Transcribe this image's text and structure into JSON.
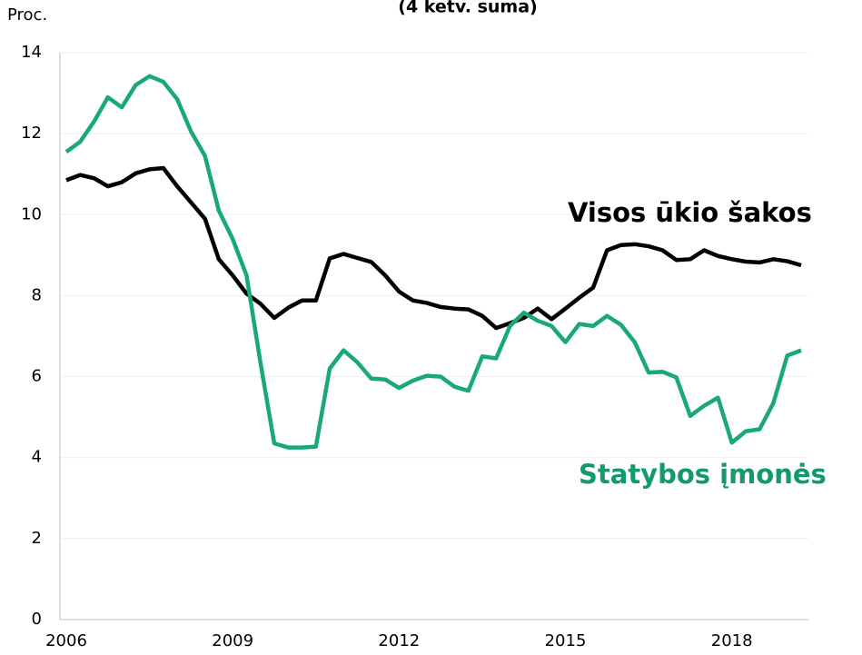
{
  "chart_data": {
    "type": "line",
    "title": "(4 ketv. suma)",
    "y_label": "Proc.",
    "categories": [
      "2006",
      null,
      null,
      null,
      null,
      null,
      null,
      null,
      null,
      null,
      null,
      null,
      "2009",
      null,
      null,
      null,
      null,
      null,
      null,
      null,
      null,
      null,
      null,
      null,
      "2012",
      null,
      null,
      null,
      null,
      null,
      null,
      null,
      null,
      null,
      null,
      null,
      "2015",
      null,
      null,
      null,
      null,
      null,
      null,
      null,
      null,
      null,
      null,
      null,
      "2018",
      null,
      null,
      null,
      null,
      null
    ],
    "series": [
      {
        "name": "Visos ūkio šakos",
        "color": "#000000",
        "values": [
          10.85,
          10.98,
          10.9,
          10.7,
          10.8,
          11.02,
          11.12,
          11.15,
          10.7,
          10.3,
          9.9,
          8.9,
          8.5,
          8.05,
          7.8,
          7.45,
          7.7,
          7.88,
          7.88,
          8.92,
          9.03,
          8.93,
          8.83,
          8.5,
          8.1,
          7.88,
          7.82,
          7.72,
          7.68,
          7.66,
          7.5,
          7.2,
          7.32,
          7.45,
          7.68,
          7.42,
          7.68,
          7.95,
          8.2,
          9.12,
          9.25,
          9.27,
          9.22,
          9.12,
          8.88,
          8.9,
          9.12,
          8.98,
          8.9,
          8.84,
          8.82,
          8.9,
          8.85,
          8.75
        ]
      },
      {
        "name": "Statybos įmonės",
        "color": "#1aa87a",
        "values": [
          11.55,
          11.8,
          12.3,
          12.9,
          12.65,
          13.2,
          13.42,
          13.28,
          12.85,
          12.05,
          11.45,
          10.1,
          9.4,
          8.5,
          6.35,
          4.35,
          4.25,
          4.25,
          4.27,
          6.2,
          6.65,
          6.35,
          5.95,
          5.93,
          5.72,
          5.9,
          6.02,
          6.0,
          5.75,
          5.65,
          6.5,
          6.45,
          7.25,
          7.58,
          7.38,
          7.25,
          6.85,
          7.3,
          7.25,
          7.5,
          7.28,
          6.85,
          6.1,
          6.12,
          5.98,
          5.03,
          5.28,
          5.48,
          4.37,
          4.65,
          4.7,
          5.35,
          6.52,
          6.65
        ]
      }
    ],
    "ylim": [
      0,
      14
    ],
    "yticks": [
      0,
      2,
      4,
      6,
      8,
      10,
      12,
      14
    ],
    "grid": true
  }
}
